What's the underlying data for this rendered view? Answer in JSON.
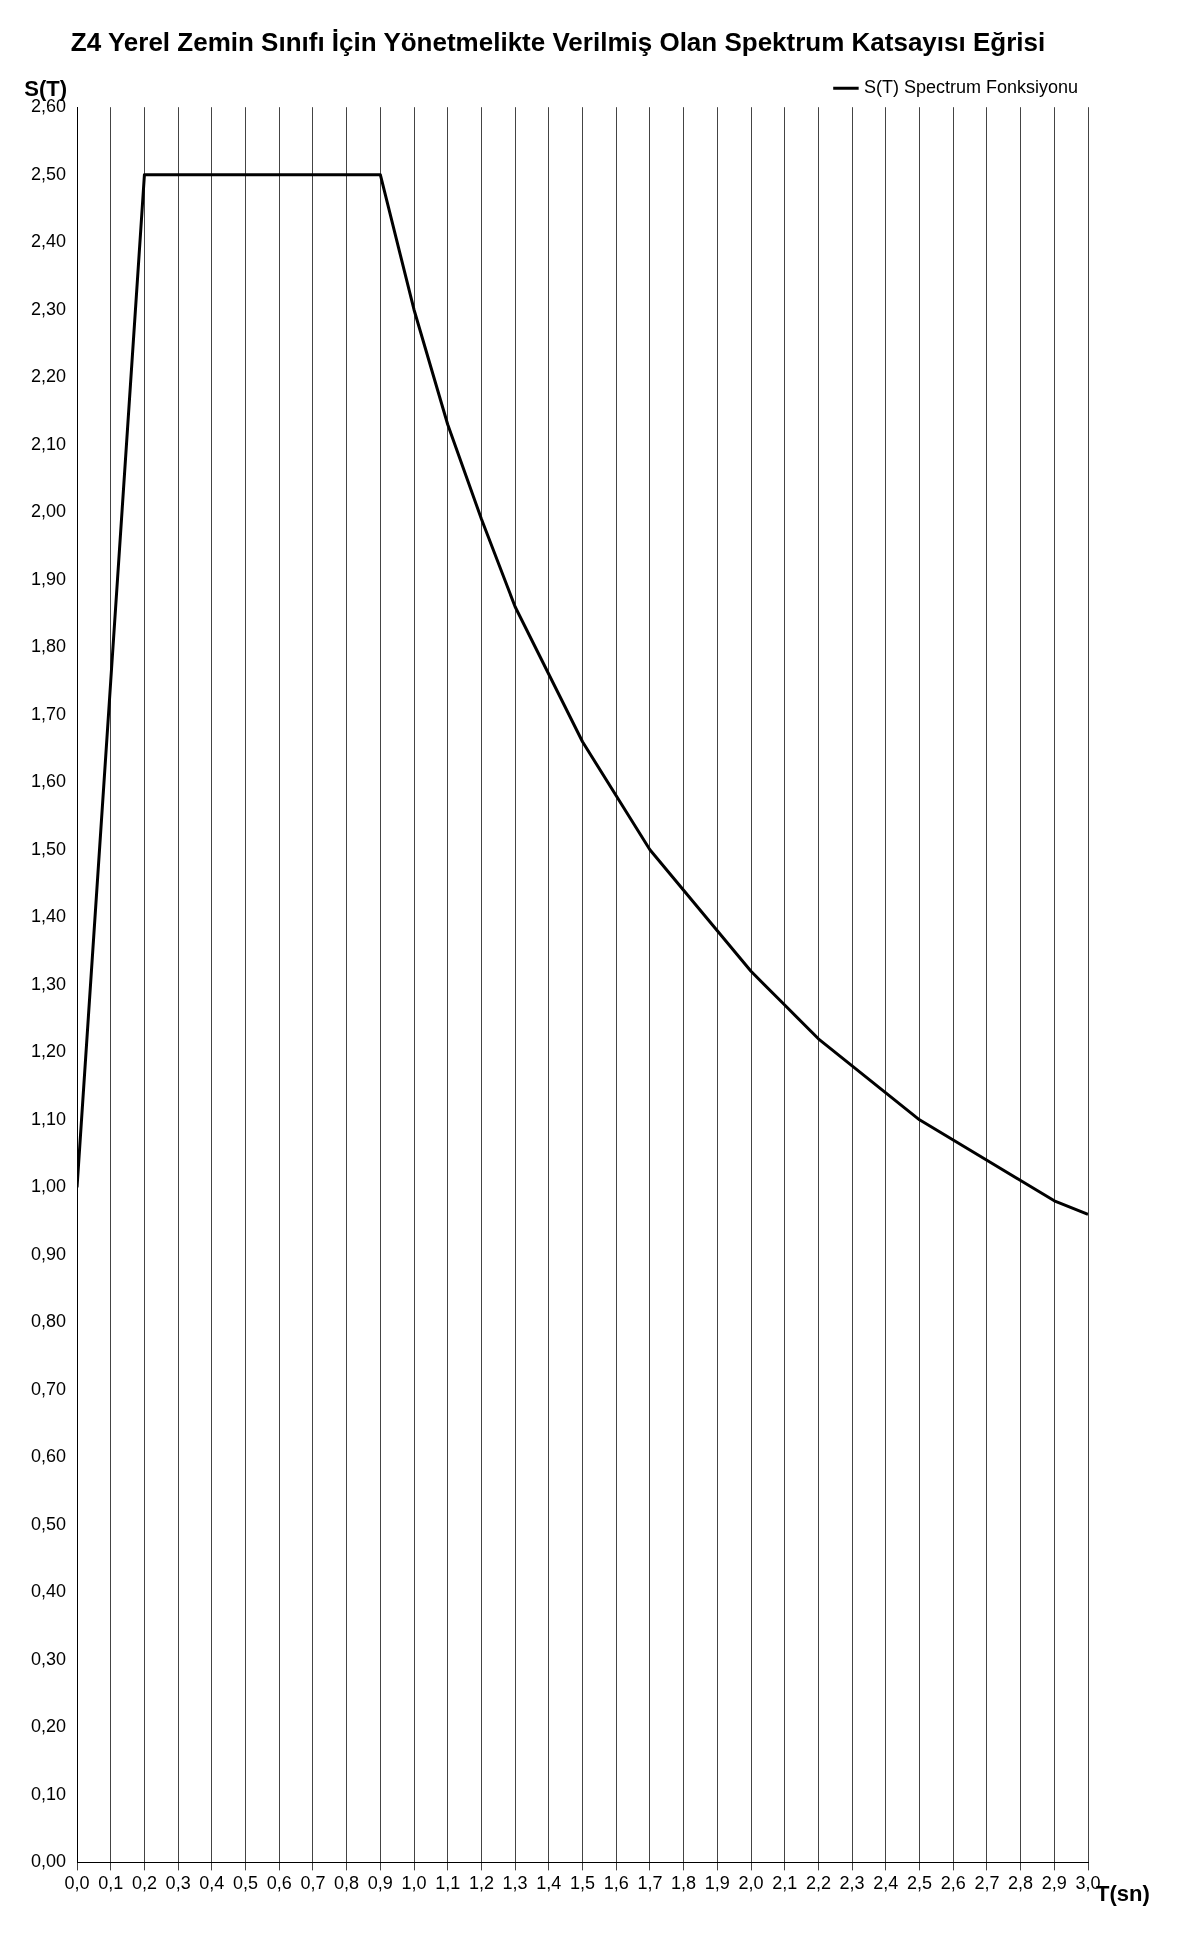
{
  "chart_data": {
    "type": "line",
    "title": "Z4 Yerel Zemin Sınıfı İçin Yönetmelikte Verilmiş Olan Spektrum Katsayısı Eğrisi",
    "xlabel": "T(sn)",
    "ylabel": "S(T)",
    "x": [
      0,
      0.1,
      0.2,
      0.3,
      0.4,
      0.5,
      0.6,
      0.7,
      0.8,
      0.9,
      1.0,
      1.1,
      1.2,
      1.3,
      1.4,
      1.5,
      1.6,
      1.7,
      1.8,
      1.9,
      2.0,
      2.1,
      2.2,
      2.3,
      2.4,
      2.5,
      2.6,
      2.7,
      2.8,
      2.9,
      3.0
    ],
    "series": [
      {
        "name": "S(T) Spectrum Fonksiyonu",
        "color": "#000000",
        "values": [
          1.0,
          1.75,
          2.5,
          2.5,
          2.5,
          2.5,
          2.5,
          2.5,
          2.5,
          2.5,
          2.3,
          2.13,
          1.99,
          1.86,
          1.76,
          1.66,
          1.58,
          1.5,
          1.44,
          1.38,
          1.32,
          1.27,
          1.22,
          1.18,
          1.14,
          1.1,
          1.07,
          1.04,
          1.01,
          0.98,
          0.96
        ]
      }
    ],
    "xlim": [
      0,
      3
    ],
    "xticks": [
      {
        "value": 0,
        "label": "0,0"
      },
      {
        "value": 0.1,
        "label": "0,1"
      },
      {
        "value": 0.2,
        "label": "0,2"
      },
      {
        "value": 0.3,
        "label": "0,3"
      },
      {
        "value": 0.4,
        "label": "0,4"
      },
      {
        "value": 0.5,
        "label": "0,5"
      },
      {
        "value": 0.6,
        "label": "0,6"
      },
      {
        "value": 0.7,
        "label": "0,7"
      },
      {
        "value": 0.8,
        "label": "0,8"
      },
      {
        "value": 0.9,
        "label": "0,9"
      },
      {
        "value": 1,
        "label": "1,0"
      },
      {
        "value": 1.1,
        "label": "1,1"
      },
      {
        "value": 1.2,
        "label": "1,2"
      },
      {
        "value": 1.3,
        "label": "1,3"
      },
      {
        "value": 1.4,
        "label": "1,4"
      },
      {
        "value": 1.5,
        "label": "1,5"
      },
      {
        "value": 1.6,
        "label": "1,6"
      },
      {
        "value": 1.7,
        "label": "1,7"
      },
      {
        "value": 1.8,
        "label": "1,8"
      },
      {
        "value": 1.9,
        "label": "1,9"
      },
      {
        "value": 2,
        "label": "2,0"
      },
      {
        "value": 2.1,
        "label": "2,1"
      },
      {
        "value": 2.2,
        "label": "2,2"
      },
      {
        "value": 2.3,
        "label": "2,3"
      },
      {
        "value": 2.4,
        "label": "2,4"
      },
      {
        "value": 2.5,
        "label": "2,5"
      },
      {
        "value": 2.6,
        "label": "2,6"
      },
      {
        "value": 2.7,
        "label": "2,7"
      },
      {
        "value": 2.8,
        "label": "2,8"
      },
      {
        "value": 2.9,
        "label": "2,9"
      },
      {
        "value": 3,
        "label": "3,0"
      }
    ],
    "ylim": [
      0,
      2.6
    ],
    "yticks": [
      {
        "value": 0,
        "label": "0,00"
      },
      {
        "value": 0.1,
        "label": "0,10"
      },
      {
        "value": 0.2,
        "label": "0,20"
      },
      {
        "value": 0.3,
        "label": "0,30"
      },
      {
        "value": 0.4,
        "label": "0,40"
      },
      {
        "value": 0.5,
        "label": "0,50"
      },
      {
        "value": 0.6,
        "label": "0,60"
      },
      {
        "value": 0.7,
        "label": "0,70"
      },
      {
        "value": 0.8,
        "label": "0,80"
      },
      {
        "value": 0.9,
        "label": "0,90"
      },
      {
        "value": 1,
        "label": "1,00"
      },
      {
        "value": 1.1,
        "label": "1,10"
      },
      {
        "value": 1.2,
        "label": "1,20"
      },
      {
        "value": 1.3,
        "label": "1,30"
      },
      {
        "value": 1.4,
        "label": "1,40"
      },
      {
        "value": 1.5,
        "label": "1,50"
      },
      {
        "value": 1.6,
        "label": "1,60"
      },
      {
        "value": 1.7,
        "label": "1,70"
      },
      {
        "value": 1.8,
        "label": "1,80"
      },
      {
        "value": 1.9,
        "label": "1,90"
      },
      {
        "value": 2,
        "label": "2,00"
      },
      {
        "value": 2.1,
        "label": "2,10"
      },
      {
        "value": 2.2,
        "label": "2,20"
      },
      {
        "value": 2.3,
        "label": "2,30"
      },
      {
        "value": 2.4,
        "label": "2,40"
      },
      {
        "value": 2.5,
        "label": "2,50"
      },
      {
        "value": 2.6,
        "label": "2,60"
      }
    ],
    "grid": "x",
    "legend": "top right",
    "marker": "none",
    "line_style": "solid"
  }
}
